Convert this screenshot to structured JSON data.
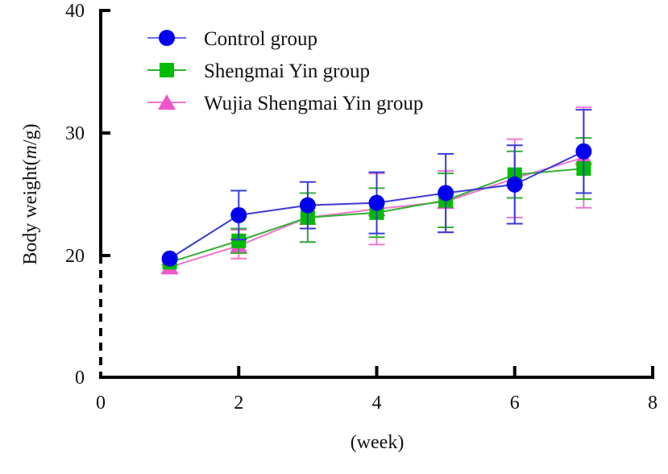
{
  "chart_data": {
    "type": "line",
    "title": "",
    "xlabel": "(week)",
    "ylabel_parts": [
      "Body weight(",
      "m",
      "/g)"
    ],
    "ylabel": "Body weight(m/g)",
    "xlim": [
      0,
      8
    ],
    "ylim": [
      0,
      40
    ],
    "y_axis_break": [
      0,
      20
    ],
    "x_ticks": [
      0,
      2,
      4,
      6,
      8
    ],
    "x_tick_labels": [
      "0",
      "2",
      "4",
      "6",
      "8"
    ],
    "y_ticks": [
      0,
      20,
      30,
      40
    ],
    "y_tick_labels": [
      "0",
      "20",
      "30",
      "40"
    ],
    "grid": false,
    "legend_position": "top-left",
    "x": [
      1,
      2,
      3,
      4,
      5,
      6,
      7
    ],
    "series": [
      {
        "name": "Control group",
        "marker": "circle",
        "color": "#0000ee",
        "line_color": "#3a3ad8",
        "values": [
          19.5,
          23.3,
          24.1,
          24.3,
          25.1,
          25.8,
          28.5
        ],
        "error": [
          0.0,
          2.0,
          1.9,
          2.5,
          3.2,
          3.2,
          3.4
        ]
      },
      {
        "name": "Shengmai Yin group",
        "marker": "square",
        "color": "#00bb00",
        "line_color": "#33b033",
        "values": [
          18.9,
          21.2,
          23.1,
          23.5,
          24.5,
          26.6,
          27.1
        ],
        "error": [
          0.4,
          1.0,
          2.0,
          2.0,
          2.2,
          1.9,
          2.5
        ]
      },
      {
        "name": "Wujia Shengmai Yin group",
        "marker": "triangle",
        "color": "#ee55cc",
        "line_color": "#ee77cc",
        "values": [
          18.1,
          20.8,
          23.1,
          23.8,
          24.4,
          26.3,
          28.0
        ],
        "error": [
          0.9,
          1.3,
          2.0,
          2.9,
          2.5,
          3.2,
          4.1
        ]
      }
    ]
  }
}
